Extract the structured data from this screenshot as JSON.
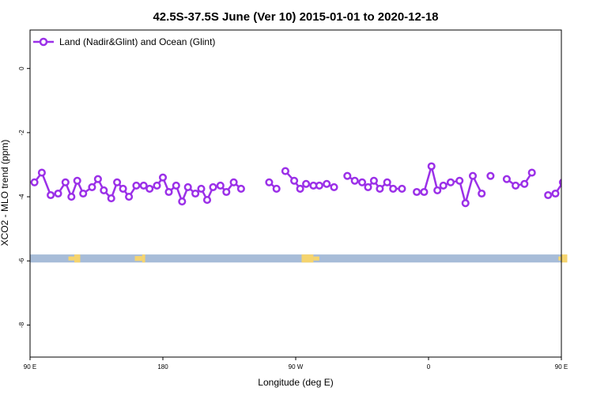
{
  "chart_data": {
    "type": "line",
    "title": "42.5S-37.5S June (Ver 10)   2015-01-01 to 2020-12-18",
    "xlabel": "Longitude (deg E)",
    "ylabel": "XCO2 - MLO trend (ppm)",
    "xlim": [
      90,
      450
    ],
    "ylim": [
      -9,
      1.2
    ],
    "x_ticks": [
      {
        "value": 90,
        "label": "90 E"
      },
      {
        "value": 180,
        "label": "180"
      },
      {
        "value": 270,
        "label": "90 W"
      },
      {
        "value": 360,
        "label": "0"
      },
      {
        "value": 450,
        "label": "90 E"
      },
      {
        "value": 540,
        "label": "180"
      }
    ],
    "y_ticks": [
      {
        "value": 0,
        "label": "0"
      },
      {
        "value": -2,
        "label": "-2"
      },
      {
        "value": -4,
        "label": "-4"
      },
      {
        "value": -6,
        "label": "-6"
      },
      {
        "value": -8,
        "label": "-8"
      }
    ],
    "legend": {
      "position": "top-left"
    },
    "grid": false,
    "series": [
      {
        "name": "Land (Nadir&Glint) and Ocean (Glint)",
        "color": "#9b30e8",
        "points": [
          [
            93,
            -3.55
          ],
          [
            98,
            -3.25
          ],
          [
            104,
            -3.95
          ],
          [
            109,
            -3.9
          ],
          [
            114,
            -3.55
          ],
          [
            118,
            -4.0
          ],
          [
            122,
            -3.5
          ],
          [
            126,
            -3.9
          ],
          [
            132,
            -3.7
          ],
          [
            136,
            -3.45
          ],
          [
            140,
            -3.8
          ],
          [
            145,
            -4.05
          ],
          [
            149,
            -3.55
          ],
          [
            153,
            -3.75
          ],
          [
            157,
            -4.0
          ],
          [
            162,
            -3.65
          ],
          [
            167,
            -3.65
          ],
          [
            171,
            -3.75
          ],
          [
            176,
            -3.65
          ],
          [
            180,
            -3.4
          ],
          [
            184,
            -3.85
          ],
          [
            189,
            -3.65
          ],
          [
            193,
            -4.15
          ],
          [
            197,
            -3.7
          ],
          [
            202,
            -3.9
          ],
          [
            206,
            -3.75
          ],
          [
            210,
            -4.1
          ],
          [
            214,
            -3.7
          ],
          [
            219,
            -3.65
          ],
          [
            223,
            -3.85
          ],
          [
            228,
            -3.55
          ],
          [
            233,
            -3.75
          ],
          null,
          [
            252,
            -3.55
          ],
          [
            257,
            -3.75
          ],
          null,
          [
            263,
            -3.2
          ],
          [
            269,
            -3.5
          ],
          [
            273,
            -3.75
          ],
          [
            277,
            -3.6
          ],
          [
            282,
            -3.65
          ],
          [
            286,
            -3.65
          ],
          [
            291,
            -3.6
          ],
          [
            296,
            -3.7
          ],
          null,
          [
            305,
            -3.35
          ],
          [
            310,
            -3.5
          ],
          [
            315,
            -3.55
          ],
          [
            319,
            -3.7
          ],
          [
            323,
            -3.5
          ],
          [
            327,
            -3.75
          ],
          [
            332,
            -3.55
          ],
          [
            336,
            -3.75
          ],
          [
            342,
            -3.75
          ],
          null,
          [
            352,
            -3.85
          ],
          [
            357,
            -3.85
          ],
          [
            362,
            -3.05
          ],
          [
            366,
            -3.8
          ],
          [
            370,
            -3.65
          ],
          [
            375,
            -3.55
          ],
          [
            381,
            -3.5
          ],
          [
            385,
            -4.2
          ],
          [
            390,
            -3.35
          ],
          [
            396,
            -3.9
          ],
          null,
          [
            402,
            -3.35
          ],
          null,
          [
            413,
            -3.45
          ],
          [
            419,
            -3.65
          ],
          [
            425,
            -3.6
          ],
          [
            430,
            -3.25
          ],
          null,
          [
            441,
            -3.95
          ],
          [
            446,
            -3.9
          ],
          [
            451,
            -3.55
          ],
          [
            455,
            -4.0
          ],
          [
            459,
            -3.5
          ],
          [
            464,
            -3.9
          ],
          [
            469,
            -3.65
          ],
          [
            473,
            -3.45
          ],
          [
            477,
            -3.8
          ],
          [
            482,
            -4.05
          ],
          [
            486,
            -3.55
          ],
          [
            490,
            -3.8
          ],
          [
            494,
            -4.0
          ],
          [
            498,
            -3.65
          ],
          [
            502,
            -3.6
          ]
        ]
      }
    ],
    "band": {
      "ymin": -6.05,
      "ymax": -5.8,
      "ocean_color": "#a7bcd8",
      "land_color": "#f5d46e"
    }
  }
}
